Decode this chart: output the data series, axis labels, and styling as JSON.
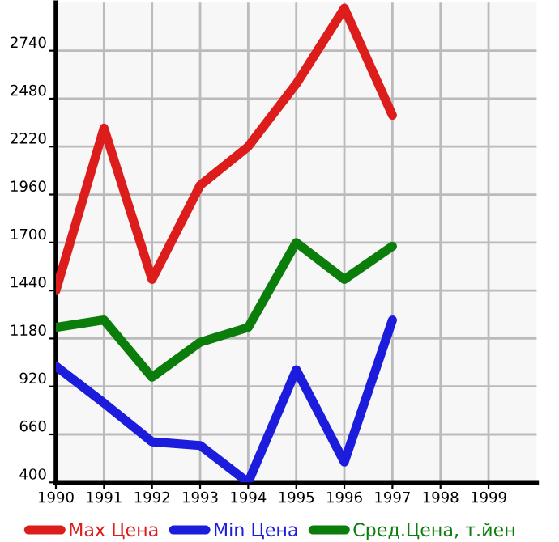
{
  "chart_data": {
    "type": "line",
    "x": [
      1990,
      1991,
      1992,
      1993,
      1994,
      1995,
      1996,
      1997
    ],
    "series": [
      {
        "name": "Max Цена",
        "color": "#dd1c1c",
        "values": [
          1440,
          2320,
          1500,
          2010,
          2220,
          2560,
          2970,
          2390
        ]
      },
      {
        "name": "Min Цена",
        "color": "#1c1cdd",
        "values": [
          1030,
          830,
          620,
          600,
          400,
          1010,
          510,
          1280
        ]
      },
      {
        "name": "Сред.Цена, т.йен",
        "color": "#0a7d0a",
        "values": [
          1240,
          1280,
          970,
          1160,
          1240,
          1700,
          1500,
          1680
        ]
      }
    ],
    "xlim": [
      1990,
      2000
    ],
    "xticks": [
      1990,
      1991,
      1992,
      1993,
      1994,
      1995,
      1996,
      1997,
      1998,
      1999
    ],
    "ylim": [
      400,
      3000
    ],
    "yticks": [
      400,
      660,
      920,
      1180,
      1440,
      1700,
      1960,
      2220,
      2480,
      2740
    ],
    "grid": true,
    "legend": "bottom",
    "marker": "none",
    "line_style": "solid"
  }
}
